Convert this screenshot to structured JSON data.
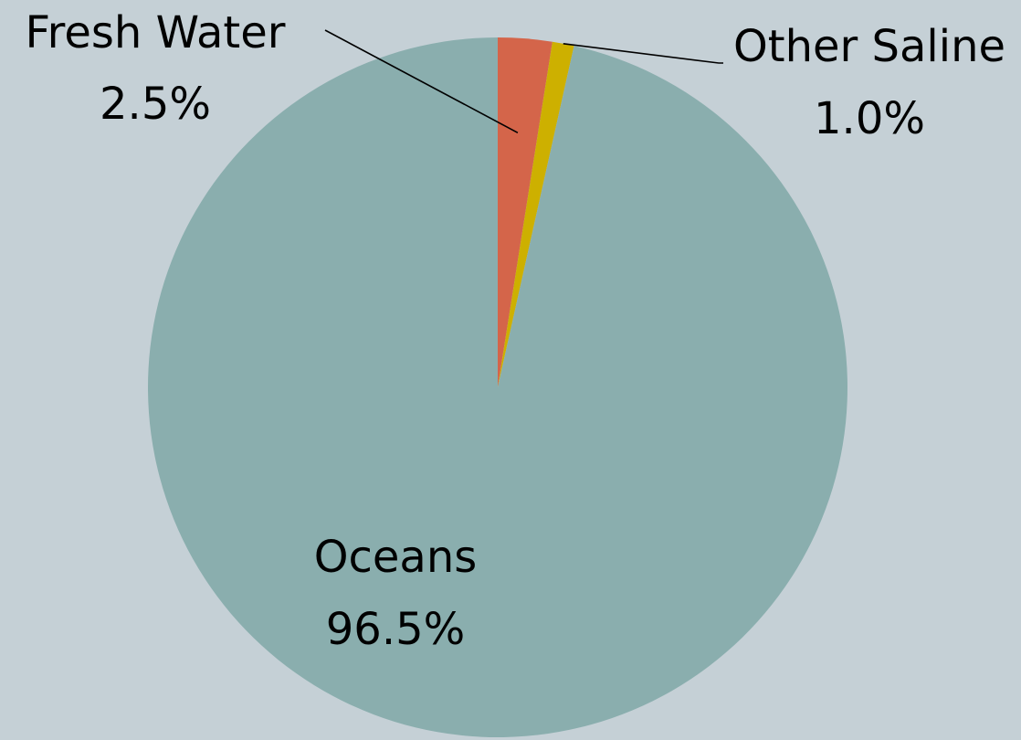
{
  "chart_data": {
    "type": "pie",
    "title": "",
    "start": "top",
    "direction": "clockwise",
    "legend": "none",
    "slices": [
      {
        "label": "Fresh Water",
        "value": 2.5,
        "value_label": "2.5%",
        "color": "#d4654a"
      },
      {
        "label": "Other Saline",
        "value": 1.0,
        "value_label": "1.0%",
        "color": "#cdb000"
      },
      {
        "label": "Oceans",
        "value": 96.5,
        "value_label": "96.5%",
        "color": "#8aaeae"
      }
    ]
  },
  "colors": {
    "background": "#c5d0d6",
    "leader_line": "#000000"
  }
}
